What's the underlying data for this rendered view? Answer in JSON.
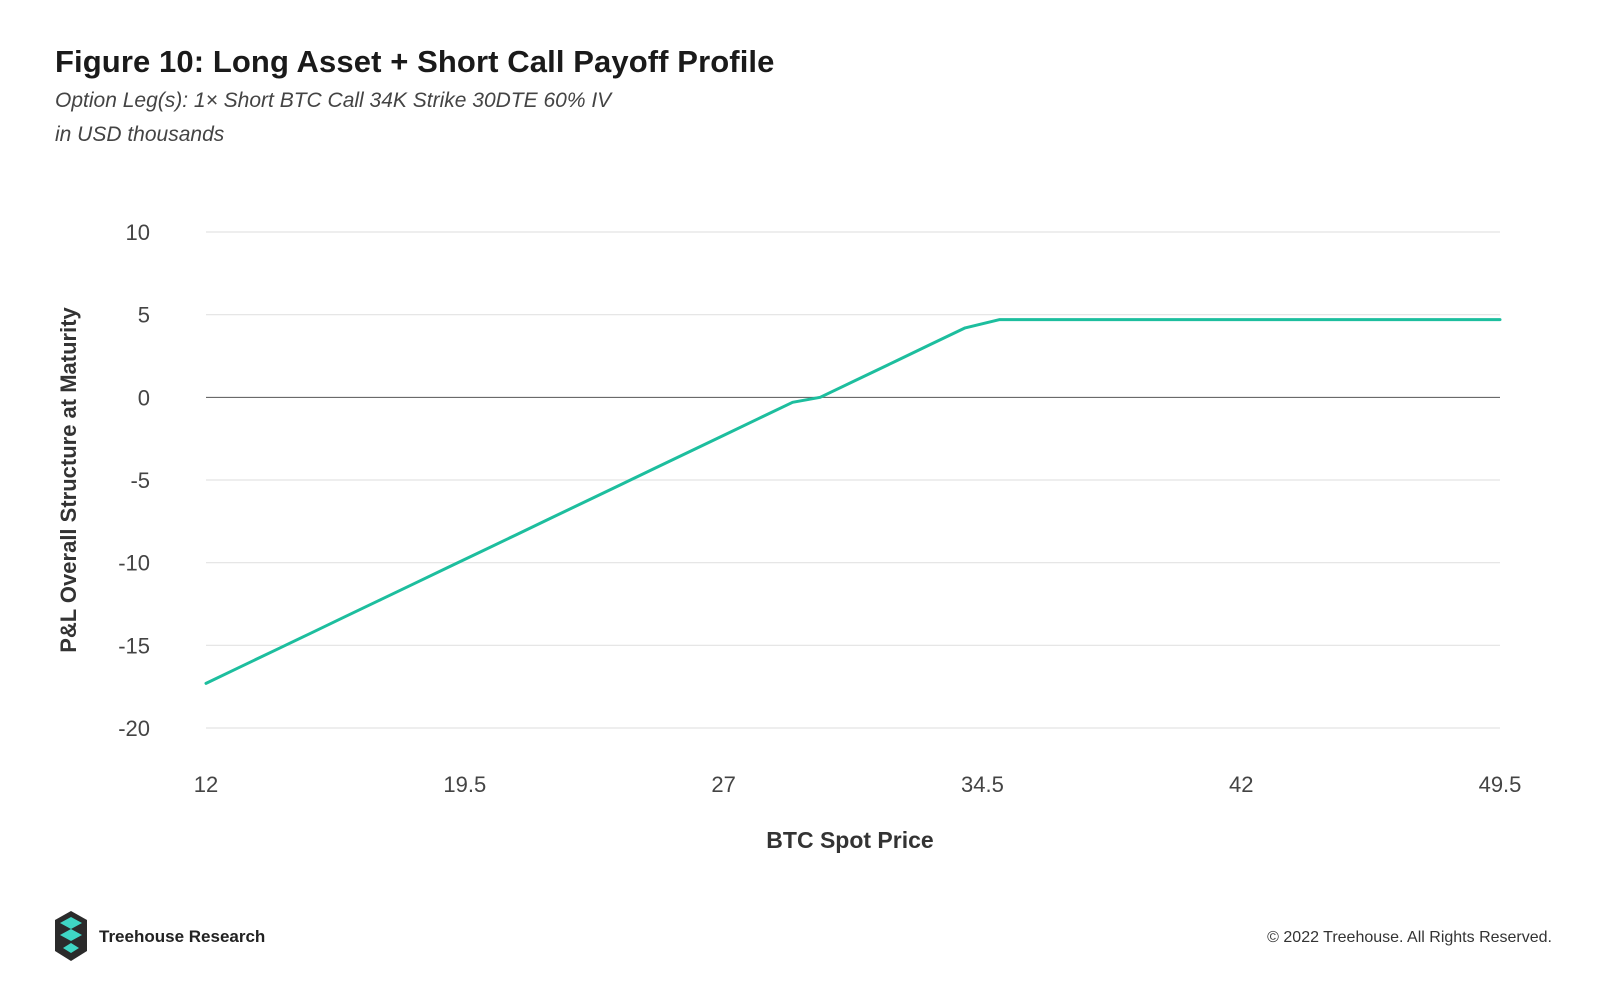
{
  "header": {
    "title": "Figure 10: Long Asset + Short Call Payoff Profile",
    "subtitle_line1": "Option Leg(s): 1× Short BTC Call 34K Strike 30DTE 60% IV",
    "subtitle_line2": "in USD thousands"
  },
  "footer": {
    "brand": "Treehouse Research",
    "copyright": "© 2022 Treehouse. All Rights Reserved.",
    "logo_icon": "treehouse-logo-icon"
  },
  "colors": {
    "line": "#1dbe9e",
    "grid": "#e3e3e3",
    "zero": "#555555",
    "tick_text": "#444444",
    "axis_title": "#333333",
    "logo_dark": "#2b2b2b",
    "logo_teal": "#3fd6c4"
  },
  "chart_data": {
    "type": "line",
    "xlabel": "BTC Spot Price",
    "ylabel": "P&L Overall Structure at Maturity",
    "xlim": [
      12,
      49.5
    ],
    "ylim": [
      -20,
      10
    ],
    "x_ticks": [
      "12",
      "19.5",
      "27",
      "34.5",
      "42",
      "49.5"
    ],
    "y_ticks": [
      "10",
      "5",
      "0",
      "-5",
      "-10",
      "-15",
      "-20"
    ],
    "grid": true,
    "legend": "none",
    "series": [
      {
        "x": [
          12,
          13,
          14,
          15,
          16,
          17,
          18,
          19,
          20,
          21,
          22,
          23,
          24,
          25,
          26,
          27,
          28,
          29,
          29.8,
          31,
          32,
          33,
          34,
          35,
          36,
          38,
          40,
          42,
          44,
          46,
          48,
          49.5
        ],
        "values": [
          -17.3,
          -16.3,
          -15.3,
          -14.3,
          -13.3,
          -12.3,
          -11.3,
          -10.3,
          -9.3,
          -8.3,
          -7.3,
          -6.3,
          -5.3,
          -4.3,
          -3.3,
          -2.3,
          -1.3,
          -0.3,
          0.0,
          1.2,
          2.2,
          3.2,
          4.2,
          4.7,
          4.7,
          4.7,
          4.7,
          4.7,
          4.7,
          4.7,
          4.7,
          4.7
        ]
      }
    ]
  }
}
